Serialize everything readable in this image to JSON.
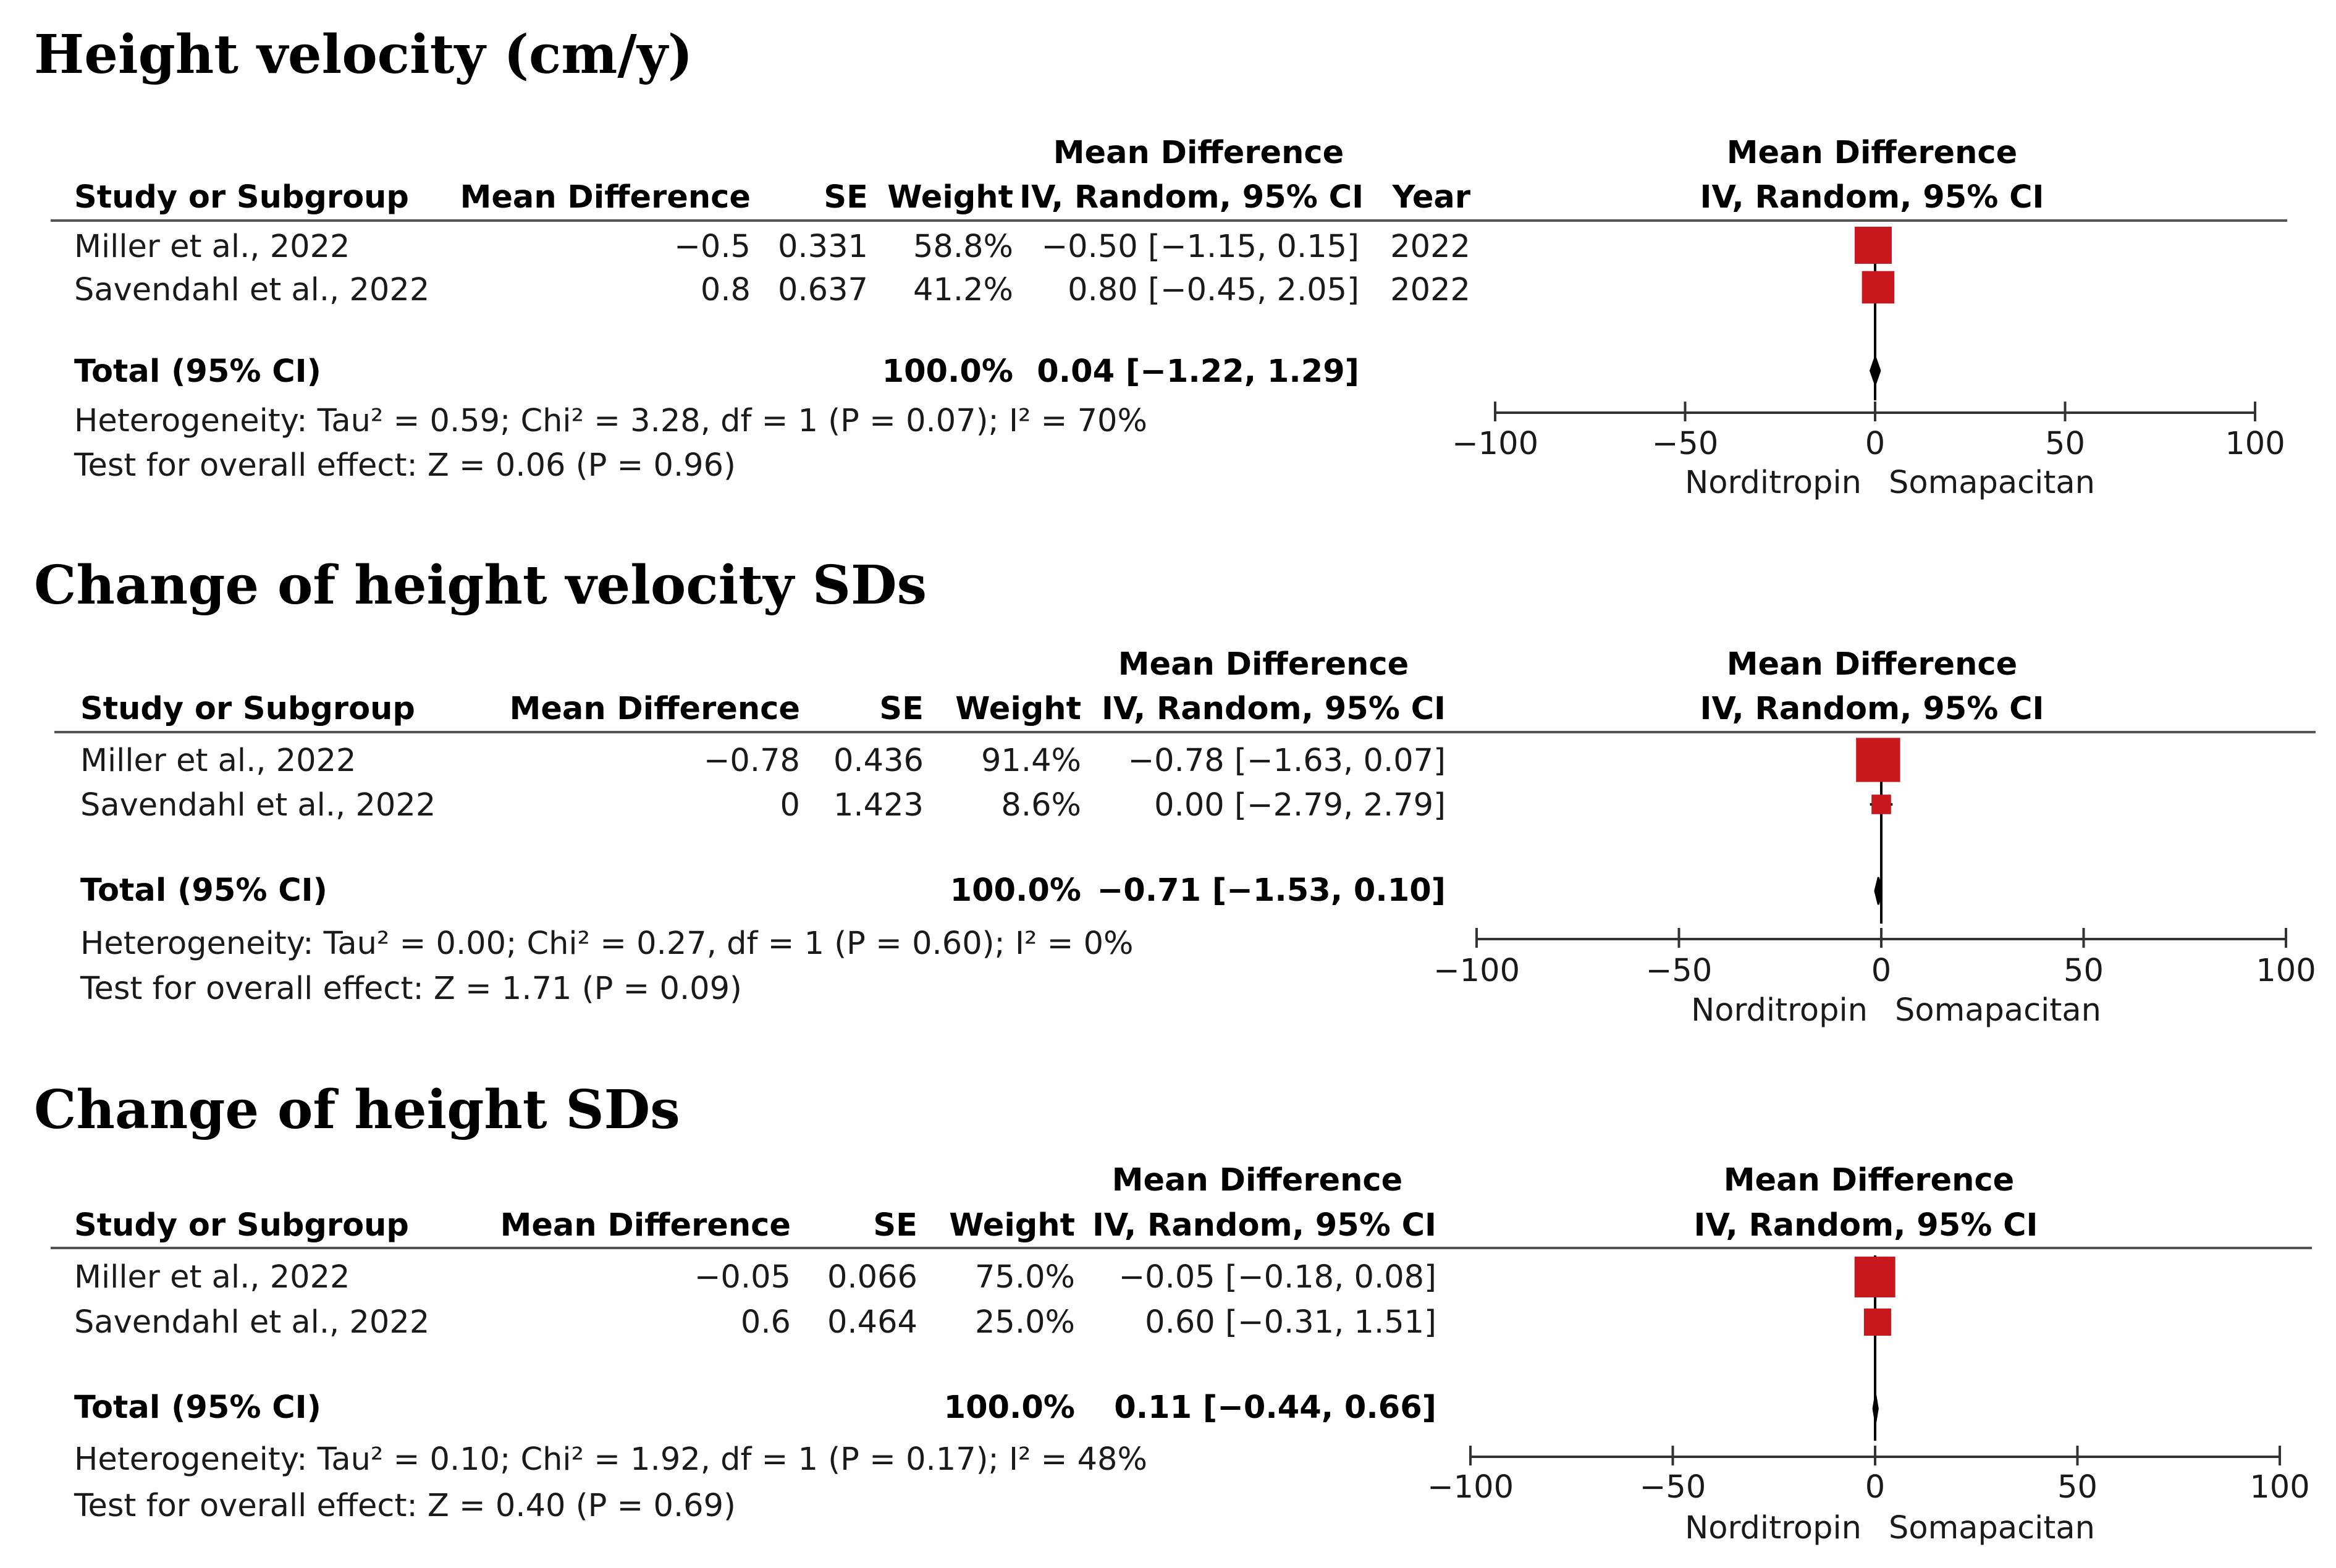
{
  "colors": {
    "marker": "#c8171d",
    "axis": "#333333",
    "text": "#1a1a1a"
  },
  "panels": [
    {
      "title": "Height velocity (cm/y)",
      "has_year": true,
      "headers": {
        "study": "Study or Subgroup",
        "md": "Mean Difference",
        "se": "SE",
        "weight": "Weight",
        "ci_top": "Mean Difference",
        "ci_bottom": "IV, Random, 95% CI",
        "year": "Year",
        "plot_top": "Mean Difference",
        "plot_bottom": "IV, Random, 95% CI"
      },
      "rows": [
        {
          "study": "Miller et al., 2022",
          "md": "−0.5",
          "se": "0.331",
          "weight": "58.8%",
          "ci": "−0.50 [−1.15, 0.15]",
          "year": "2022"
        },
        {
          "study": "Savendahl et al., 2022",
          "md": "0.8",
          "se": "0.637",
          "weight": "41.2%",
          "ci": "0.80 [−0.45, 2.05]",
          "year": "2022"
        }
      ],
      "total": {
        "label": "Total (95% CI)",
        "weight": "100.0%",
        "ci": "0.04 [−1.22, 1.29]"
      },
      "heterogeneity": "Heterogeneity: Tau² = 0.59; Chi² = 3.28, df = 1 (P = 0.07); I² = 70%",
      "overall": "Test for overall effect: Z = 0.06 (P = 0.96)",
      "axis": {
        "ticks": [
          "−100",
          "−50",
          "0",
          "50",
          "100"
        ],
        "left_label": "Norditropin",
        "right_label": "Somapacitan"
      }
    },
    {
      "title": "Change of height velocity SDs",
      "has_year": false,
      "headers": {
        "study": "Study or Subgroup",
        "md": "Mean Difference",
        "se": "SE",
        "weight": "Weight",
        "ci_top": "Mean Difference",
        "ci_bottom": "IV, Random, 95% CI",
        "plot_top": "Mean Difference",
        "plot_bottom": "IV, Random, 95% CI"
      },
      "rows": [
        {
          "study": "Miller et al., 2022",
          "md": "−0.78",
          "se": "0.436",
          "weight": "91.4%",
          "ci": "−0.78 [−1.63, 0.07]"
        },
        {
          "study": "Savendahl et al., 2022",
          "md": "0",
          "se": "1.423",
          "weight": "8.6%",
          "ci": "0.00 [−2.79, 2.79]"
        }
      ],
      "total": {
        "label": "Total (95% CI)",
        "weight": "100.0%",
        "ci": "−0.71 [−1.53, 0.10]"
      },
      "heterogeneity": "Heterogeneity: Tau² = 0.00; Chi² = 0.27, df = 1 (P = 0.60); I² = 0%",
      "overall": "Test for overall effect: Z = 1.71 (P = 0.09)",
      "axis": {
        "ticks": [
          "−100",
          "−50",
          "0",
          "50",
          "100"
        ],
        "left_label": "Norditropin",
        "right_label": "Somapacitan"
      }
    },
    {
      "title": "Change of height SDs",
      "has_year": false,
      "headers": {
        "study": "Study or Subgroup",
        "md": "Mean Difference",
        "se": "SE",
        "weight": "Weight",
        "ci_top": "Mean Difference",
        "ci_bottom": "IV, Random, 95% CI",
        "plot_top": "Mean Difference",
        "plot_bottom": "IV, Random, 95% CI"
      },
      "rows": [
        {
          "study": "Miller et al., 2022",
          "md": "−0.05",
          "se": "0.066",
          "weight": "75.0%",
          "ci": "−0.05 [−0.18, 0.08]"
        },
        {
          "study": "Savendahl et al., 2022",
          "md": "0.6",
          "se": "0.464",
          "weight": "25.0%",
          "ci": "0.60 [−0.31, 1.51]"
        }
      ],
      "total": {
        "label": "Total (95% CI)",
        "weight": "100.0%",
        "ci": "0.11 [−0.44, 0.66]"
      },
      "heterogeneity": "Heterogeneity: Tau² = 0.10; Chi² = 1.92, df = 1 (P = 0.17); I² = 48%",
      "overall": "Test for overall effect: Z = 0.40 (P = 0.69)",
      "axis": {
        "ticks": [
          "−100",
          "−50",
          "0",
          "50",
          "100"
        ],
        "left_label": "Norditropin",
        "right_label": "Somapacitan"
      }
    }
  ],
  "chart_data": [
    {
      "type": "forest",
      "title": "Height velocity (cm/y)",
      "xlim": [
        -100,
        100
      ],
      "xticks": [
        -100,
        -50,
        0,
        50,
        100
      ],
      "studies": [
        {
          "name": "Miller et al., 2022",
          "md": -0.5,
          "lo": -1.15,
          "hi": 0.15,
          "weight": 58.8
        },
        {
          "name": "Savendahl et al., 2022",
          "md": 0.8,
          "lo": -0.45,
          "hi": 2.05,
          "weight": 41.2
        }
      ],
      "total": {
        "md": 0.04,
        "lo": -1.22,
        "hi": 1.29
      }
    },
    {
      "type": "forest",
      "title": "Change of height velocity SDs",
      "xlim": [
        -100,
        100
      ],
      "xticks": [
        -100,
        -50,
        0,
        50,
        100
      ],
      "studies": [
        {
          "name": "Miller et al., 2022",
          "md": -0.78,
          "lo": -1.63,
          "hi": 0.07,
          "weight": 91.4
        },
        {
          "name": "Savendahl et al., 2022",
          "md": 0.0,
          "lo": -2.79,
          "hi": 2.79,
          "weight": 8.6
        }
      ],
      "total": {
        "md": -0.71,
        "lo": -1.53,
        "hi": 0.1
      }
    },
    {
      "type": "forest",
      "title": "Change of height SDs",
      "xlim": [
        -100,
        100
      ],
      "xticks": [
        -100,
        -50,
        0,
        50,
        100
      ],
      "studies": [
        {
          "name": "Miller et al., 2022",
          "md": -0.05,
          "lo": -0.18,
          "hi": 0.08,
          "weight": 75.0
        },
        {
          "name": "Savendahl et al., 2022",
          "md": 0.6,
          "lo": -0.31,
          "hi": 1.51,
          "weight": 25.0
        }
      ],
      "total": {
        "md": 0.11,
        "lo": -0.44,
        "hi": 0.66
      }
    }
  ]
}
